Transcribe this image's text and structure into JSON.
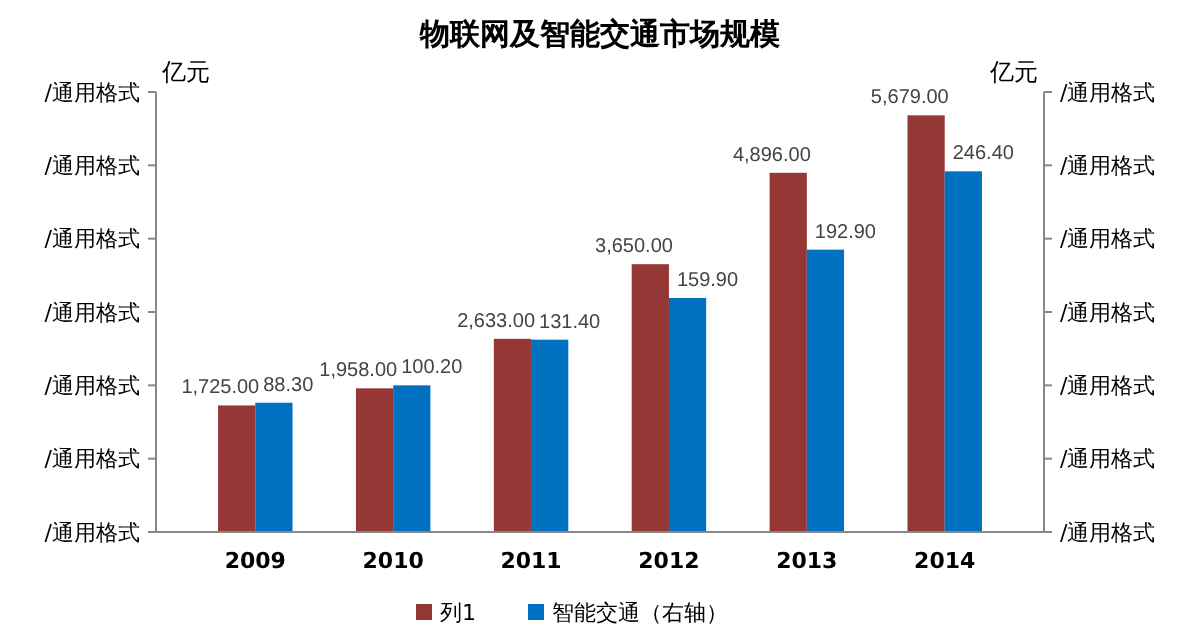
{
  "chart_data": {
    "type": "bar",
    "title": "物联网及智能交通市场规模",
    "ylabel": "亿元",
    "y2label": "亿元",
    "categories": [
      "2009",
      "2010",
      "2011",
      "2012",
      "2013",
      "2014"
    ],
    "series": [
      {
        "name": "列1",
        "color": "#953735",
        "values": [
          1725,
          1958,
          2633,
          3650,
          4896,
          5679
        ],
        "value_labels": [
          "1,725.00",
          "1,958.00",
          "2,633.00",
          "3,650.00",
          "4,896.00",
          "5,679.00"
        ]
      },
      {
        "name": "智能交通（右轴）",
        "color": "#0070c0",
        "axis": "y2",
        "values": [
          88.3,
          100.2,
          131.4,
          159.9,
          192.9,
          246.4
        ],
        "value_labels": [
          "88.30",
          "100.20",
          "131.40",
          "159.90",
          "192.90",
          "246.40"
        ]
      }
    ],
    "annotations": [
      "/通用格式",
      "/通用格式",
      "/通用格式",
      "/通用格式",
      "/通用格式",
      "/通用格式",
      "/通用格式",
      "/通用格式",
      "/通用格式",
      "/通用格式",
      "/通用格式",
      "/通用格式",
      "/通用格式",
      "/通用格式"
    ],
    "legend": "bottom"
  }
}
